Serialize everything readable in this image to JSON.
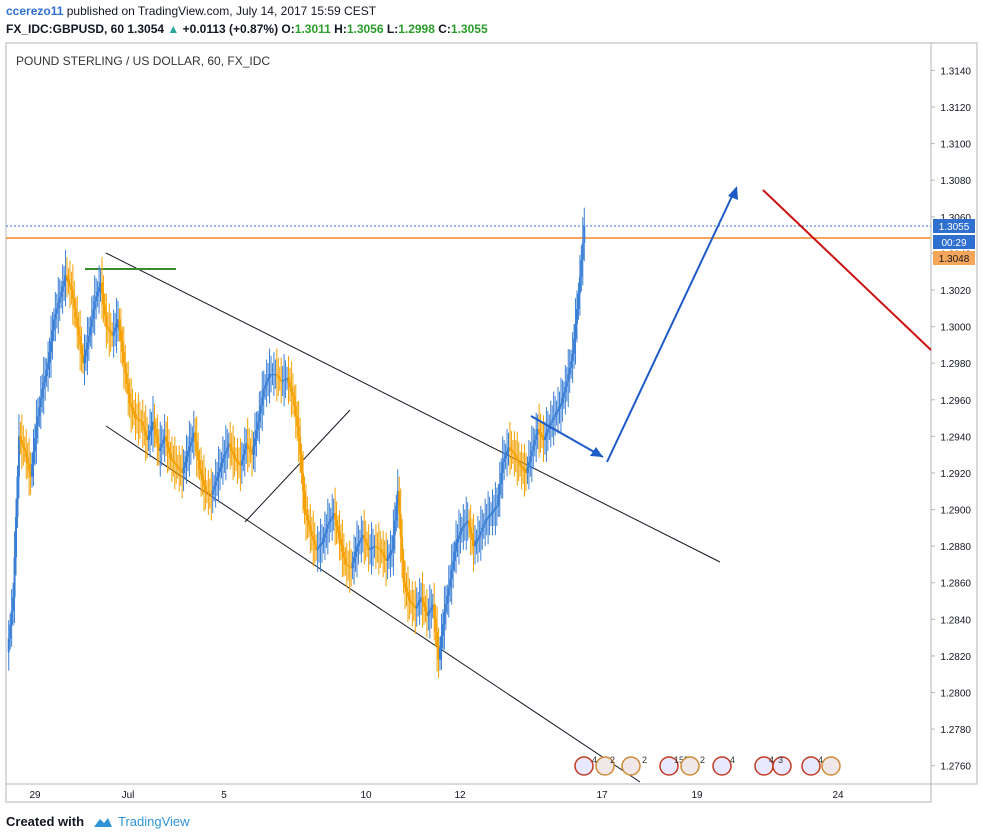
{
  "header": {
    "author": "ccerezo11",
    "published": "published on TradingView.com, July 14, 2017 15:59 CEST",
    "symbol": "FX_IDC:GBPUSD, 60",
    "last": "1.3054",
    "arrow": "▲",
    "change": "+0.0113 (+0.87%)",
    "o_label": "O:",
    "o_value": "1.3011",
    "h_label": "H:",
    "h_value": "1.3056",
    "l_label": "L:",
    "l_value": "1.2998",
    "c_label": "C:",
    "c_value": "1.3055"
  },
  "footer": {
    "created": "Created with",
    "brand": "TradingView"
  },
  "chart_data": {
    "type": "candlestick",
    "title": "POUND STERLING / US DOLLAR, 60, FX_IDC",
    "ylim": [
      1.275,
      1.3155
    ],
    "y_ticks": [
      "1.3140",
      "1.3120",
      "1.3100",
      "1.3080",
      "1.3060",
      "1.3040",
      "1.3020",
      "1.3000",
      "1.2980",
      "1.2960",
      "1.2940",
      "1.2920",
      "1.2900",
      "1.2880",
      "1.2860",
      "1.2840",
      "1.2820",
      "1.2800",
      "1.2780",
      "1.2760"
    ],
    "x_ticks": [
      "29",
      "Jul",
      "5",
      "10",
      "12",
      "17",
      "19",
      "24"
    ],
    "price_label": "1.3055",
    "countdown_label": "00:29",
    "horizontal_level_label": "1.3048",
    "colors": {
      "up": "#3a7fd6",
      "down": "#f5a000",
      "level": "#f5a65b",
      "current": "#2f6fd0",
      "blue_arrow": "#1e5bc6",
      "red_line": "#cc1111",
      "green_line": "#3c8a2e",
      "trend": "#131722"
    },
    "price_path": [
      [
        0,
        1.2822
      ],
      [
        1,
        1.2852
      ],
      [
        2,
        1.294
      ],
      [
        3,
        1.2932
      ],
      [
        4,
        1.2918
      ],
      [
        5,
        1.2946
      ],
      [
        6,
        1.2966
      ],
      [
        7,
        1.298
      ],
      [
        8,
        1.3004
      ],
      [
        9,
        1.3016
      ],
      [
        10,
        1.3028
      ],
      [
        11,
        1.302
      ],
      [
        12,
        1.3
      ],
      [
        13,
        1.298
      ],
      [
        14,
        1.2995
      ],
      [
        15,
        1.3014
      ],
      [
        16,
        1.3024
      ],
      [
        17,
        1.3
      ],
      [
        18,
        1.2995
      ],
      [
        19,
        1.3004
      ],
      [
        20,
        1.298
      ],
      [
        21,
        1.2958
      ],
      [
        22,
        1.295
      ],
      [
        23,
        1.2948
      ],
      [
        24,
        1.2938
      ],
      [
        25,
        1.2948
      ],
      [
        26,
        1.2932
      ],
      [
        27,
        1.294
      ],
      [
        28,
        1.2928
      ],
      [
        29,
        1.2924
      ],
      [
        30,
        1.292
      ],
      [
        31,
        1.2932
      ],
      [
        32,
        1.2942
      ],
      [
        33,
        1.2922
      ],
      [
        34,
        1.291
      ],
      [
        35,
        1.2908
      ],
      [
        36,
        1.2918
      ],
      [
        37,
        1.2928
      ],
      [
        38,
        1.2936
      ],
      [
        39,
        1.2928
      ],
      [
        40,
        1.2924
      ],
      [
        41,
        1.2936
      ],
      [
        42,
        1.293
      ],
      [
        43,
        1.2948
      ],
      [
        44,
        1.2966
      ],
      [
        45,
        1.2974
      ],
      [
        46,
        1.2974
      ],
      [
        47,
        1.297
      ],
      [
        48,
        1.2972
      ],
      [
        49,
        1.2962
      ],
      [
        50,
        1.294
      ],
      [
        51,
        1.29
      ],
      [
        52,
        1.2888
      ],
      [
        53,
        1.2878
      ],
      [
        54,
        1.2882
      ],
      [
        55,
        1.2892
      ],
      [
        56,
        1.2898
      ],
      [
        57,
        1.2884
      ],
      [
        58,
        1.287
      ],
      [
        59,
        1.2868
      ],
      [
        60,
        1.288
      ],
      [
        61,
        1.2886
      ],
      [
        62,
        1.2878
      ],
      [
        63,
        1.288
      ],
      [
        64,
        1.2878
      ],
      [
        65,
        1.2872
      ],
      [
        66,
        1.2878
      ],
      [
        67,
        1.291
      ],
      [
        68,
        1.286
      ],
      [
        69,
        1.285
      ],
      [
        70,
        1.2846
      ],
      [
        71,
        1.2852
      ],
      [
        72,
        1.2842
      ],
      [
        73,
        1.2848
      ],
      [
        74,
        1.2818
      ],
      [
        75,
        1.2844
      ],
      [
        76,
        1.2862
      ],
      [
        77,
        1.2882
      ],
      [
        78,
        1.289
      ],
      [
        79,
        1.2894
      ],
      [
        80,
        1.288
      ],
      [
        81,
        1.2886
      ],
      [
        82,
        1.2894
      ],
      [
        83,
        1.2898
      ],
      [
        84,
        1.2902
      ],
      [
        85,
        1.2926
      ],
      [
        86,
        1.2934
      ],
      [
        87,
        1.293
      ],
      [
        88,
        1.2924
      ],
      [
        89,
        1.292
      ],
      [
        90,
        1.2932
      ],
      [
        91,
        1.2944
      ],
      [
        92,
        1.2938
      ],
      [
        93,
        1.2946
      ],
      [
        94,
        1.2952
      ],
      [
        95,
        1.2958
      ],
      [
        96,
        1.297
      ],
      [
        97,
        1.2985
      ],
      [
        98,
        1.3018
      ],
      [
        99,
        1.3055
      ]
    ],
    "annotations": [
      "descending channel",
      "green resistance line",
      "blue projection arrow",
      "red trend line",
      "event icons"
    ]
  }
}
